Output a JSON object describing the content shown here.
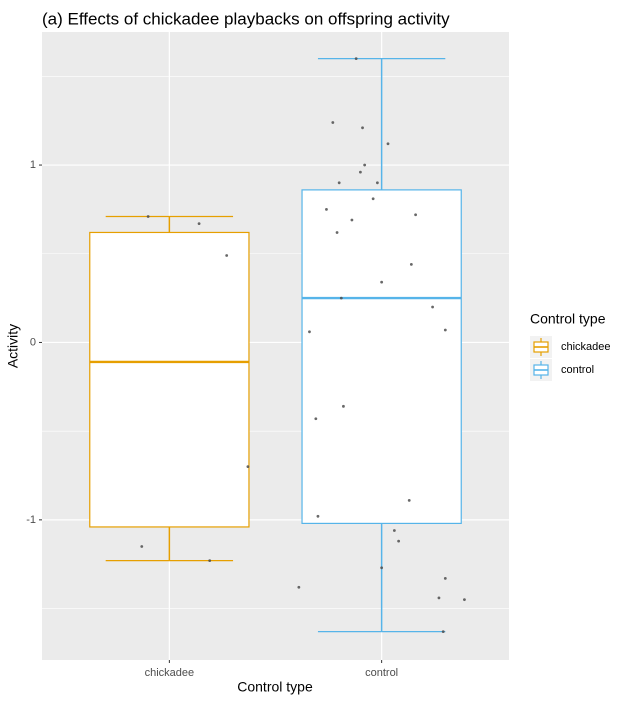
{
  "chart_data": {
    "type": "box",
    "title": "(a) Effects of chickadee playbacks on offspring activity",
    "xlabel": "Control type",
    "ylabel": "Activity",
    "ylim": [
      -1.79,
      1.75
    ],
    "yticks": [
      -1,
      0,
      1
    ],
    "ytick_labels": [
      "-1",
      "0",
      "1"
    ],
    "categories": [
      "chickadee",
      "control"
    ],
    "grid": true,
    "legend": {
      "title": "Control type",
      "position": "right",
      "entries": [
        "chickadee",
        "control"
      ]
    },
    "colors": {
      "chickadee": "#E69F00",
      "control": "#56B4E9",
      "panel_bg": "#EBEBEB",
      "grid": "#FFFFFF",
      "points": "#4D4D4D"
    },
    "series": [
      {
        "name": "chickadee",
        "category": "chickadee",
        "box": {
          "whisker_low": -1.23,
          "q1": -1.04,
          "median": -0.11,
          "q3": 0.62,
          "whisker_high": 0.71
        },
        "points": [
          {
            "x": -0.1,
            "y": 0.71
          },
          {
            "x": 0.14,
            "y": 0.67
          },
          {
            "x": 0.27,
            "y": 0.49
          },
          {
            "x": 0.37,
            "y": -0.7
          },
          {
            "x": -0.13,
            "y": -1.15
          },
          {
            "x": 0.19,
            "y": -1.23
          }
        ]
      },
      {
        "name": "control",
        "category": "control",
        "box": {
          "whisker_low": -1.63,
          "q1": -1.02,
          "median": 0.25,
          "q3": 0.86,
          "whisker_high": 1.6
        },
        "points": [
          {
            "x": -0.12,
            "y": 1.6
          },
          {
            "x": -0.23,
            "y": 1.24
          },
          {
            "x": -0.09,
            "y": 1.21
          },
          {
            "x": 0.03,
            "y": 1.12
          },
          {
            "x": -0.08,
            "y": 1.0
          },
          {
            "x": -0.1,
            "y": 0.96
          },
          {
            "x": -0.2,
            "y": 0.9
          },
          {
            "x": -0.02,
            "y": 0.9
          },
          {
            "x": -0.04,
            "y": 0.81
          },
          {
            "x": -0.26,
            "y": 0.75
          },
          {
            "x": 0.16,
            "y": 0.72
          },
          {
            "x": -0.14,
            "y": 0.69
          },
          {
            "x": -0.21,
            "y": 0.62
          },
          {
            "x": 0.14,
            "y": 0.44
          },
          {
            "x": 0.0,
            "y": 0.34
          },
          {
            "x": -0.19,
            "y": 0.25
          },
          {
            "x": 0.24,
            "y": 0.2
          },
          {
            "x": 0.3,
            "y": 0.07
          },
          {
            "x": -0.34,
            "y": 0.06
          },
          {
            "x": -0.18,
            "y": -0.36
          },
          {
            "x": -0.31,
            "y": -0.43
          },
          {
            "x": 0.13,
            "y": -0.89
          },
          {
            "x": -0.3,
            "y": -0.98
          },
          {
            "x": 0.06,
            "y": -1.06
          },
          {
            "x": 0.08,
            "y": -1.12
          },
          {
            "x": 0.0,
            "y": -1.27
          },
          {
            "x": 0.3,
            "y": -1.33
          },
          {
            "x": -0.39,
            "y": -1.38
          },
          {
            "x": 0.27,
            "y": -1.44
          },
          {
            "x": 0.39,
            "y": -1.45
          },
          {
            "x": 0.29,
            "y": -1.63
          }
        ]
      }
    ]
  }
}
